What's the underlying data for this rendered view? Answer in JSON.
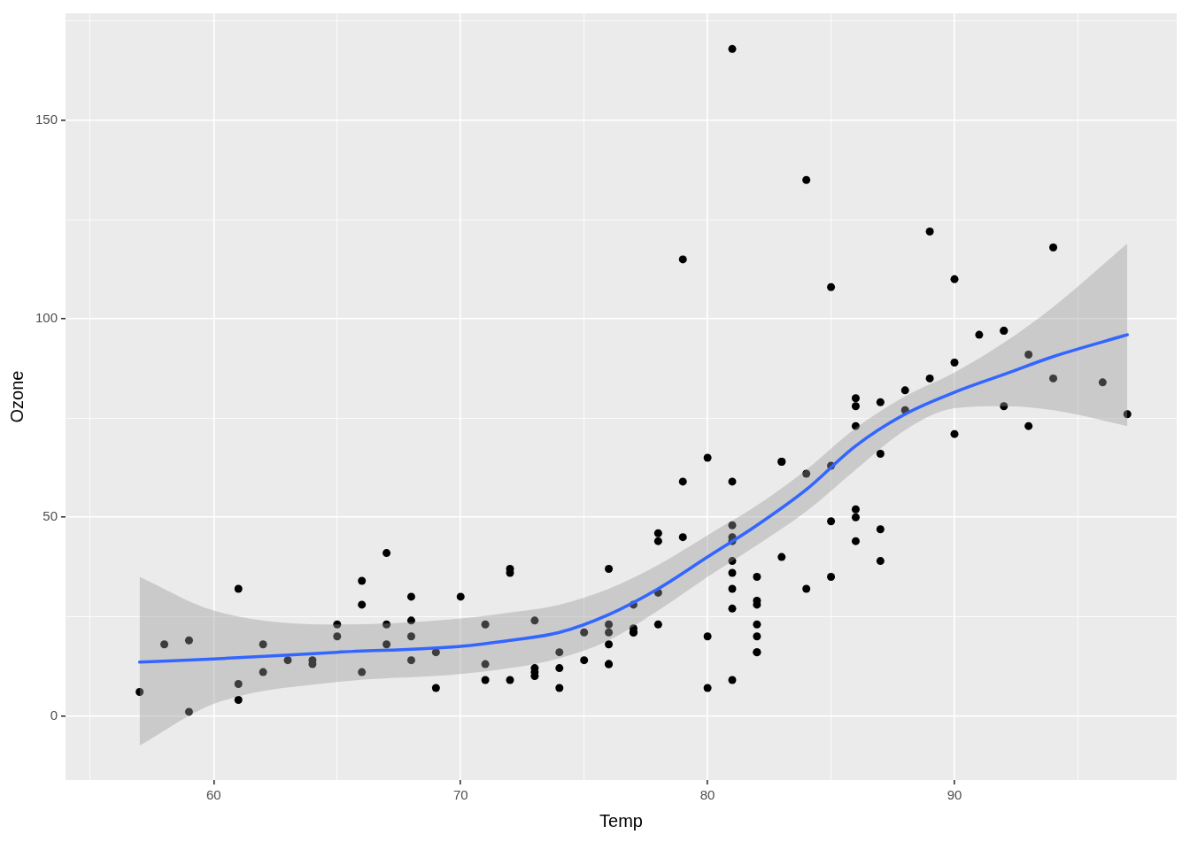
{
  "chart_data": {
    "type": "scatter",
    "xlabel": "Temp",
    "ylabel": "Ozone",
    "xlim": [
      54,
      99
    ],
    "ylim": [
      -16.2,
      177
    ],
    "xticks": [
      {
        "value": 55,
        "label": null
      },
      60,
      {
        "value": 65,
        "label": null
      },
      70,
      {
        "value": 75,
        "label": null
      },
      80,
      {
        "value": 85,
        "label": null
      },
      90,
      {
        "value": 95,
        "label": null
      }
    ],
    "yticks": [
      0,
      {
        "value": 25,
        "label": null
      },
      50,
      {
        "value": 75,
        "label": null
      },
      100,
      {
        "value": 125,
        "label": null
      },
      150,
      {
        "value": 175,
        "label": null
      }
    ],
    "grid": true,
    "series": [
      {
        "color": "#000000",
        "marker": "circle",
        "x": [
          67,
          72,
          74,
          62,
          66,
          65,
          59,
          61,
          74,
          69,
          66,
          68,
          58,
          64,
          66,
          57,
          68,
          62,
          59,
          73,
          61,
          61,
          67,
          81,
          79,
          76,
          82,
          90,
          87,
          82,
          77,
          72,
          65,
          73,
          76,
          84,
          85,
          81,
          83,
          83,
          88,
          92,
          92,
          89,
          73,
          81,
          80,
          81,
          82,
          84,
          87,
          85,
          74,
          86,
          85,
          82,
          86,
          88,
          86,
          83,
          81,
          81,
          81,
          82,
          86,
          85,
          87,
          89,
          90,
          90,
          86,
          82,
          80,
          77,
          79,
          76,
          78,
          78,
          77,
          72,
          79,
          81,
          86,
          97,
          94,
          96,
          94,
          91,
          92,
          93,
          93,
          87,
          84,
          80,
          78,
          75,
          73,
          81,
          76,
          77,
          71,
          71,
          78,
          67,
          76,
          68,
          82,
          64,
          71,
          81,
          69,
          63,
          70,
          75,
          76,
          68
        ],
        "values": [
          41,
          36,
          12,
          18,
          28,
          23,
          19,
          8,
          7,
          16,
          11,
          14,
          18,
          14,
          34,
          6,
          30,
          11,
          1,
          11,
          4,
          32,
          23,
          45,
          115,
          37,
          29,
          71,
          39,
          23,
          21,
          37,
          20,
          12,
          13,
          135,
          49,
          32,
          64,
          40,
          77,
          97,
          97,
          85,
          10,
          27,
          7,
          48,
          35,
          61,
          79,
          63,
          16,
          80,
          108,
          20,
          52,
          82,
          50,
          64,
          59,
          39,
          9,
          16,
          78,
          35,
          66,
          122,
          89,
          110,
          44,
          28,
          65,
          22,
          59,
          23,
          31,
          44,
          21,
          9,
          45,
          168,
          73,
          76,
          118,
          84,
          85,
          96,
          78,
          73,
          91,
          47,
          32,
          20,
          23,
          21,
          24,
          44,
          21,
          28,
          9,
          13,
          46,
          18,
          13,
          24,
          16,
          13,
          23,
          36,
          7,
          14,
          30,
          14,
          18,
          20
        ]
      },
      {
        "type": "line",
        "color": "#3366ff",
        "line_style": "solid",
        "x": [
          57,
          60,
          65,
          70,
          72,
          74,
          76,
          78,
          80,
          82,
          84,
          86,
          88,
          90,
          92,
          94,
          97
        ],
        "values": [
          13.5,
          14.3,
          16,
          17.5,
          19,
          21,
          25.5,
          32,
          40,
          48,
          57,
          68,
          76,
          81.5,
          86,
          90.5,
          96
        ],
        "lower": [
          -7.5,
          3,
          8.5,
          10.5,
          12,
          14.5,
          19,
          26.5,
          35,
          43,
          51.5,
          62,
          72,
          77.5,
          78,
          77,
          73
        ],
        "upper": [
          35,
          26.5,
          23,
          24.5,
          26,
          28,
          32,
          38,
          45.5,
          53,
          62,
          72.5,
          80.5,
          86.5,
          94,
          103,
          119
        ]
      }
    ]
  }
}
